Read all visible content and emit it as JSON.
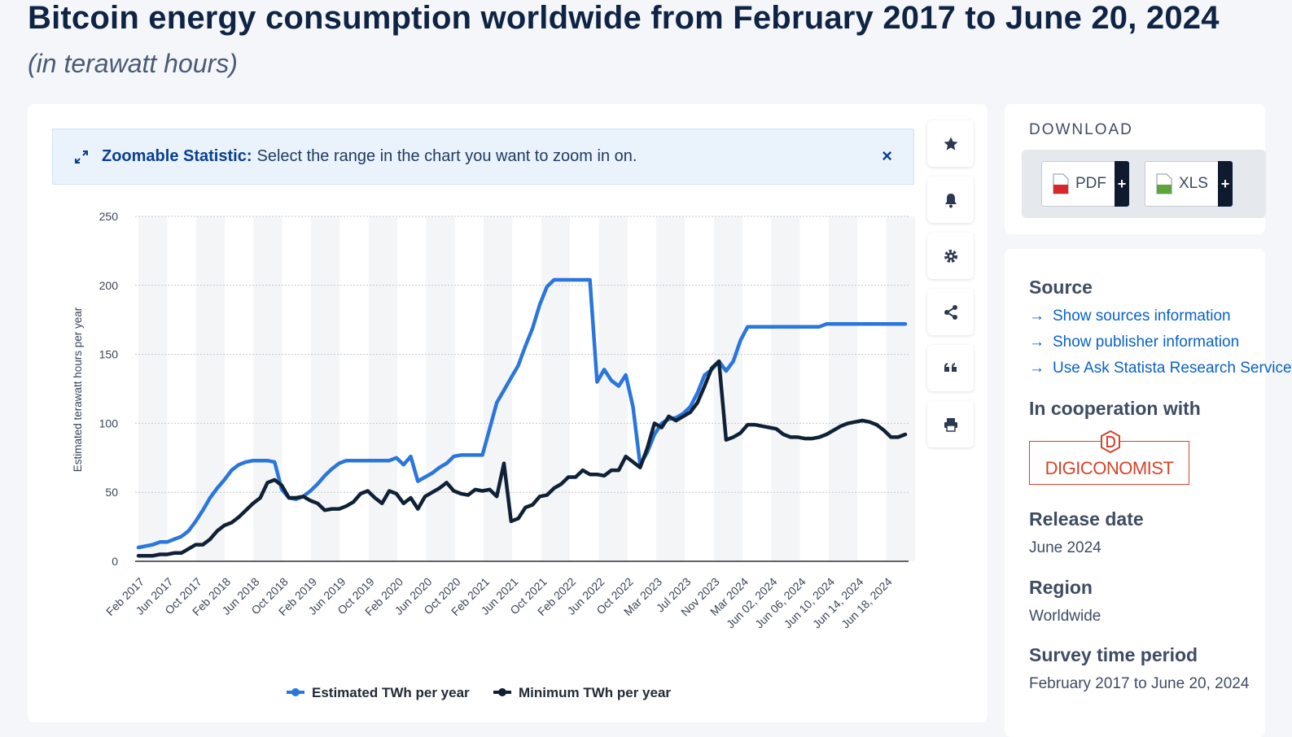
{
  "page": {
    "title": "Bitcoin energy consumption worldwide from February 2017 to June 20, 2024",
    "subtitle": "(in terawatt hours)"
  },
  "zoom_banner": {
    "strong": "Zoomable Statistic:",
    "text": "Select the range in the chart you want to zoom in on.",
    "close": "×"
  },
  "toolbar": {
    "icons": [
      "star-icon",
      "bell-icon",
      "gear-icon",
      "share-icon",
      "quote-icon",
      "print-icon"
    ]
  },
  "download": {
    "heading": "DOWNLOAD",
    "pdf_label": "PDF",
    "xls_label": "XLS",
    "plus": "+"
  },
  "info": {
    "source_heading": "Source",
    "source_links": [
      "Show sources information",
      "Show publisher information",
      "Use Ask Statista Research Service"
    ],
    "coop_heading": "In cooperation with",
    "coop_logo": "DIGICONOMIST",
    "release_heading": "Release date",
    "release_value": "June 2024",
    "region_heading": "Region",
    "region_value": "Worldwide",
    "survey_heading": "Survey time period",
    "survey_value": "February 2017 to June 20, 2024"
  },
  "colors": {
    "estimated": "#2a76dc",
    "minimum": "#0f2136",
    "accent": "#0a3f91"
  },
  "chart_data": {
    "type": "line",
    "ylabel": "Estimated terawatt hours per year",
    "ylim": [
      0,
      250
    ],
    "yticks": [
      0,
      50,
      100,
      150,
      200,
      250
    ],
    "grid": true,
    "legend_position": "bottom",
    "tick_labels": [
      "Feb 2017",
      "Jun 2017",
      "Oct 2017",
      "Feb 2018",
      "Jun 2018",
      "Oct 2018",
      "Feb 2019",
      "Jun 2019",
      "Oct 2019",
      "Feb 2020",
      "Jun 2020",
      "Oct 2020",
      "Feb 2021",
      "Jun 2021",
      "Oct 2021",
      "Feb 2022",
      "Jun 2022",
      "Oct 2022",
      "Mar 2023",
      "Jul 2023",
      "Nov 2023",
      "Mar 2024",
      "Jun 02, 2024",
      "Jun 06, 2024",
      "Jun 10, 2024",
      "Jun 14, 2024",
      "Jun 18, 2024"
    ],
    "point_count": 108,
    "series": [
      {
        "name": "Estimated TWh per year",
        "values": [
          10,
          11,
          12,
          14,
          14,
          16,
          18,
          22,
          29,
          37,
          46,
          53,
          59,
          66,
          70,
          72,
          73,
          73,
          73,
          72,
          52,
          46,
          45,
          47,
          51,
          56,
          62,
          67,
          71,
          73,
          73,
          73,
          73,
          73,
          73,
          73,
          75,
          70,
          76,
          58,
          61,
          64,
          68,
          71,
          76,
          77,
          77,
          77,
          77,
          96,
          115,
          124,
          133,
          142,
          156,
          169,
          186,
          199,
          204,
          204,
          204,
          204,
          204,
          204,
          130,
          139,
          131,
          127,
          135,
          112,
          70,
          79,
          92,
          100,
          103,
          104,
          107,
          112,
          122,
          135,
          139,
          145,
          138,
          145,
          160,
          170,
          170,
          170,
          170,
          170,
          170,
          170,
          170,
          170,
          170,
          170,
          172,
          172,
          172,
          172,
          172,
          172,
          172,
          172,
          172,
          172,
          172,
          172
        ]
      },
      {
        "name": "Minimum TWh per year",
        "values": [
          4,
          4,
          4,
          5,
          5,
          6,
          6,
          9,
          12,
          12,
          16,
          22,
          26,
          28,
          32,
          37,
          42,
          46,
          57,
          59,
          55,
          46,
          46,
          47,
          44,
          42,
          37,
          38,
          38,
          40,
          43,
          49,
          51,
          46,
          42,
          51,
          49,
          42,
          46,
          38,
          47,
          50,
          53,
          57,
          51,
          49,
          48,
          52,
          51,
          52,
          47,
          71,
          29,
          31,
          39,
          41,
          47,
          48,
          53,
          56,
          61,
          61,
          66,
          63,
          63,
          62,
          66,
          66,
          76,
          72,
          68,
          82,
          100,
          97,
          105,
          102,
          105,
          108,
          115,
          127,
          140,
          145,
          88,
          90,
          93,
          99,
          99,
          98,
          97,
          96,
          92,
          90,
          90,
          89,
          89,
          90,
          92,
          95,
          98,
          100,
          101,
          102,
          101,
          99,
          95,
          90,
          90,
          92
        ]
      }
    ]
  }
}
